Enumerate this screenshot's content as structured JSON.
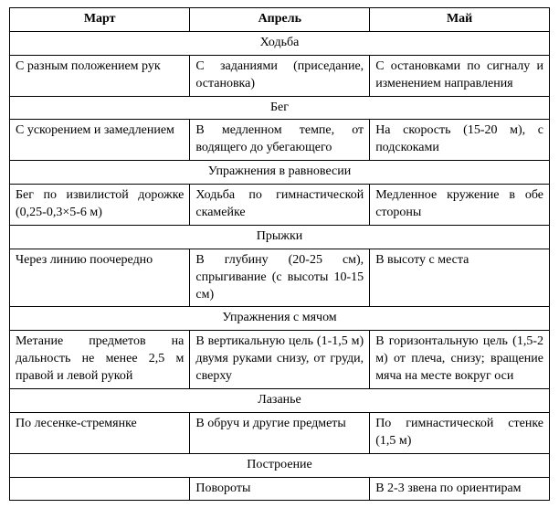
{
  "table": {
    "column_widths_pct": [
      33.4,
      33.3,
      33.3
    ],
    "border_color": "#000000",
    "background_color": "#ffffff",
    "font_family": "Times New Roman",
    "font_size_pt": 11,
    "headers": [
      "Март",
      "Апрель",
      "Май"
    ],
    "sections": [
      {
        "title": "Ходьба",
        "rows": [
          [
            "С разным положением рук",
            "С заданиями (приседание, остановка)",
            "С остановками по сигналу и изменением направления"
          ]
        ]
      },
      {
        "title": "Бег",
        "rows": [
          [
            "С ускорением и замедлением",
            "В медленном темпе, от водящего до убегающего",
            "На скорость (15-20 м), с подскоками"
          ]
        ]
      },
      {
        "title": "Упражнения в равновесии",
        "rows": [
          [
            "Бег по извилистой дорожке (0,25-0,3×5-6 м)",
            "Ходьба по гимнастической скамейке",
            "Медленное кружение в обе стороны"
          ]
        ]
      },
      {
        "title": "Прыжки",
        "rows": [
          [
            "Через линию поочередно",
            "В глубину (20-25 см), спрыгивание (с высоты 10-15 см)",
            "В высоту с места"
          ]
        ]
      },
      {
        "title": "Упражнения с мячом",
        "rows": [
          [
            "Метание предметов на дальность не менее 2,5 м правой и левой рукой",
            "В вертикальную цель (1-1,5 м) двумя руками снизу, от груди, сверху",
            "В горизонтальную цель (1,5-2 м) от плеча, снизу; вращение мяча на месте вокруг оси"
          ]
        ]
      },
      {
        "title": "Лазанье",
        "rows": [
          [
            "По лесенке-стремянке",
            "В обруч и другие предметы",
            "По гимнастической стенке (1,5 м)"
          ]
        ]
      },
      {
        "title": "Построение",
        "rows": [
          [
            "",
            "Повороты",
            "В 2-3 звена по ориентирам"
          ]
        ]
      }
    ]
  }
}
